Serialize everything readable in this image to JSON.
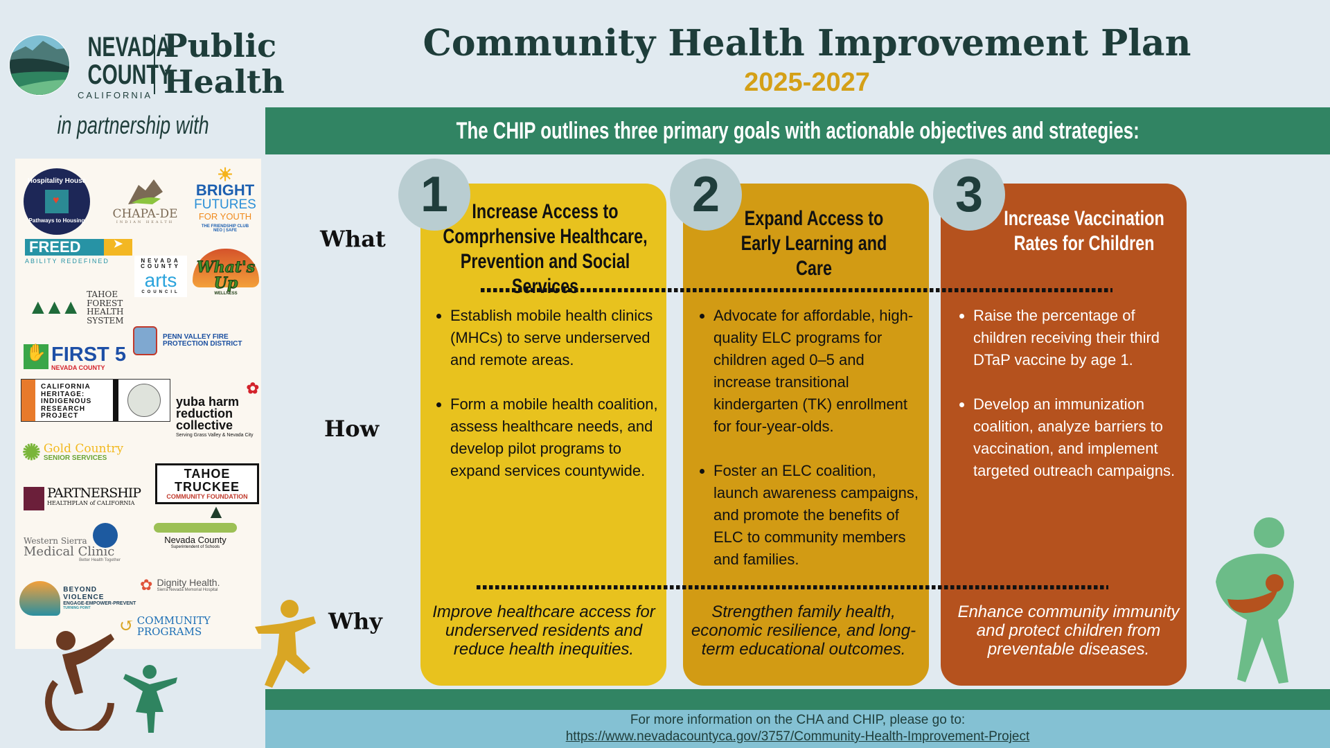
{
  "header": {
    "org_line1": "NEVADA",
    "org_line2": "COUNTY",
    "org_line3": "CALIFORNIA",
    "dept": "Public Health",
    "partnership": "in partnership with",
    "title": "Community Health Improvement Plan",
    "years": "2025-2027"
  },
  "banner": "The CHIP outlines three primary goals with actionable objectives and strategies:",
  "rows": {
    "what": "What",
    "how": "How",
    "why": "Why"
  },
  "partners": [
    "Hospitality House",
    "Pathways to Housing",
    "CHAPA-DE",
    "INDIAN HEALTH",
    "BRIGHT",
    "FUTURES",
    "FOR YOUTH",
    "THE FRIENDSHIP CLUB",
    "NEO | SAFE",
    "FREED",
    "ABILITY REDEFINED",
    "NEVADA COUNTY",
    "arts",
    "COUNCIL",
    "What's Up",
    "WELLNESS",
    "TAHOE FOREST HEALTH SYSTEM",
    "PENN VALLEY FIRE PROTECTION DISTRICT",
    "FIRST 5",
    "NEVADA COUNTY",
    "CALIFORNIA HERITAGE: INDIGENOUS RESEARCH PROJECT",
    "yuba harm reduction collective",
    "Serving Grass Valley & Nevada City",
    "Gold Country",
    "SENIOR SERVICES",
    "TAHOE TRUCKEE",
    "COMMUNITY FOUNDATION",
    "PARTNERSHIP",
    "HEALTHPLAN of CALIFORNIA",
    "Western Sierra",
    "Medical Clinic",
    "Better Health Together",
    "Nevada County",
    "Superintendent of Schools",
    "Dignity Health.",
    "Sierra Nevada Memorial Hospital",
    "COMMUNITY",
    "BEYOND VIOLENCE",
    "ENGAGE-EMPOWER-PREVENT",
    "TURNING POINT",
    "COMMUNITY PROGRAMS"
  ],
  "goals": [
    {
      "number": "1",
      "title": "Increase Access to Comprhensive Healthcare, Prevention and Social Services",
      "color": "#e8c21e",
      "title_color": "#111111",
      "how": [
        "Establish mobile health clinics (MHCs) to serve underserved and remote areas.",
        "Form a mobile health coalition, assess healthcare needs, and develop pilot programs to expand services countywide."
      ],
      "why": "Improve healthcare access for underserved residents and reduce health inequities."
    },
    {
      "number": "2",
      "title": "Expand Access to Early Learning and Care",
      "color": "#d29b14",
      "title_color": "#111111",
      "how": [
        "Advocate for affordable, high-quality ELC programs for children aged 0–5 and increase transitional kindergarten (TK) enrollment for four-year-olds.",
        "Foster an ELC coalition, launch awareness campaigns, and promote the benefits of ELC to community members and families."
      ],
      "why": "Strengthen family health, economic resilience, and long-term educational outcomes."
    },
    {
      "number": "3",
      "title": "Increase Vaccination Rates for Children",
      "color": "#b5521e",
      "title_color": "#ffffff",
      "how": [
        "Raise the percentage of children receiving their third DTaP vaccine by age 1.",
        "Develop an immunization coalition, analyze barriers to vaccination, and implement targeted outreach campaigns."
      ],
      "why": "Enhance community immunity and protect children from preventable diseases."
    }
  ],
  "footer": {
    "text": "For more information on the CHA and CHIP, please go to:",
    "link": "https://www.nevadacountyca.gov/3757/Community-Health-Improvement-Project"
  }
}
